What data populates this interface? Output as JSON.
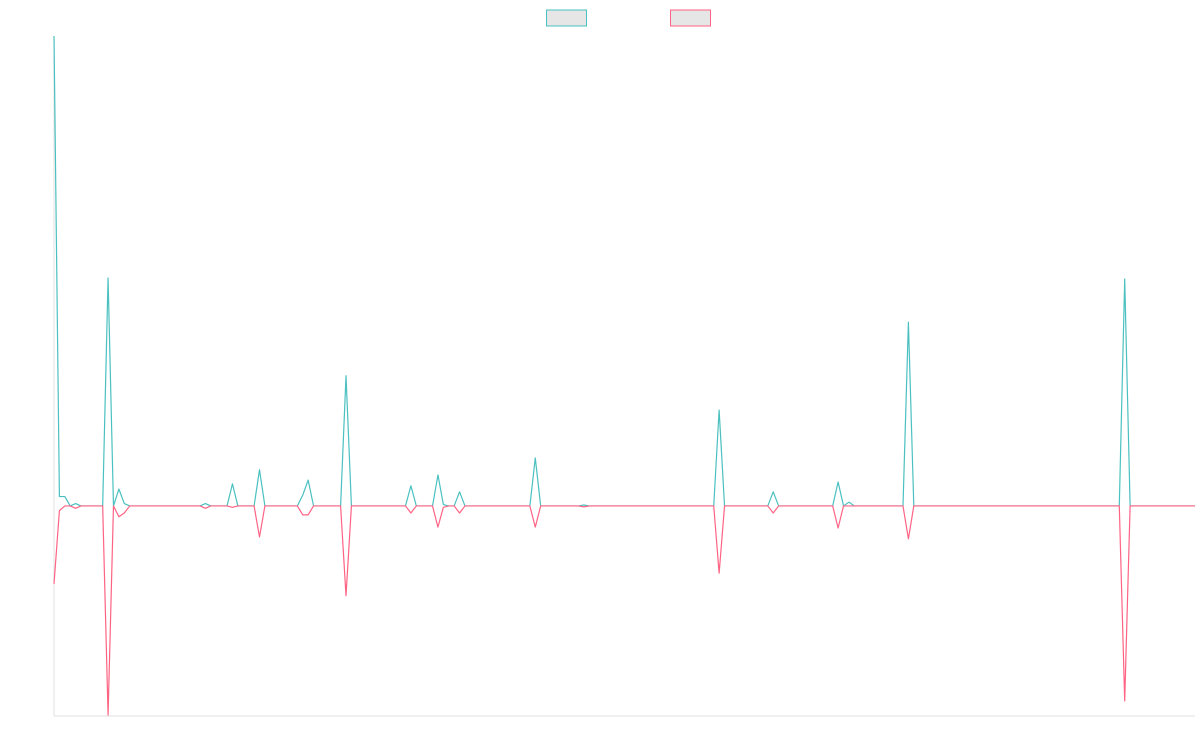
{
  "chart_data": {
    "type": "line",
    "categories": [
      null,
      null,
      null,
      null,
      null,
      null,
      null,
      null,
      null,
      null,
      null,
      null,
      null,
      null,
      null,
      null,
      null,
      null,
      null,
      null,
      null,
      null,
      null,
      null,
      null,
      null,
      null,
      null,
      null,
      null,
      null,
      null,
      null,
      null,
      null,
      null,
      null,
      null,
      null,
      null,
      null,
      null,
      null,
      null,
      null,
      null,
      null,
      null,
      null,
      null,
      null,
      null,
      null,
      null,
      null,
      null,
      null,
      null,
      null,
      null,
      null,
      null,
      null,
      null,
      null,
      null,
      null,
      null,
      null,
      null,
      null,
      null,
      null,
      null,
      null,
      null,
      null,
      null,
      null,
      null,
      null,
      null,
      null,
      null,
      null,
      null,
      null,
      null,
      null,
      null,
      null,
      null,
      null,
      null,
      null,
      null,
      null,
      null,
      null,
      null,
      null,
      null,
      null,
      null,
      null,
      null,
      null,
      null,
      null,
      null,
      null,
      null,
      null,
      null,
      null,
      null,
      null,
      null,
      null,
      null,
      null,
      null,
      null,
      null,
      null,
      null,
      null,
      null,
      null,
      null,
      null,
      null,
      null,
      null,
      null,
      null,
      null,
      null,
      null,
      null,
      null,
      null,
      null,
      null,
      null,
      null,
      null,
      null,
      null,
      null,
      null,
      null,
      null,
      null,
      null,
      null,
      null,
      null,
      null,
      null,
      null,
      null,
      null,
      null,
      null,
      null,
      null,
      null,
      null,
      null,
      null,
      null,
      null,
      null,
      null,
      null,
      null,
      null,
      null,
      null,
      null,
      null,
      null,
      null,
      null,
      null,
      null,
      null,
      null,
      null,
      null,
      null,
      null,
      null,
      null,
      null,
      null,
      null,
      null,
      null,
      null,
      null,
      null,
      null,
      null,
      null,
      null,
      null,
      null,
      null,
      null,
      null
    ],
    "series": [
      {
        "color": "#4bc0c0",
        "values": [
          100,
          2,
          2,
          0,
          0.5,
          0,
          0,
          0,
          0,
          0,
          48.5,
          0,
          3.6,
          0.5,
          0,
          0,
          0,
          0,
          0,
          0,
          0,
          0,
          0,
          0,
          0,
          0,
          0,
          0,
          0.5,
          0,
          0,
          0,
          0,
          4.7,
          0,
          0,
          0,
          0,
          7.7,
          0,
          0,
          0,
          0,
          0,
          0,
          0,
          2.3,
          5.5,
          0,
          0,
          0,
          0,
          0,
          0,
          27.7,
          0,
          0,
          0,
          0,
          0,
          0,
          0,
          0,
          0,
          0,
          0,
          4.3,
          0,
          0,
          0,
          0,
          6.6,
          0.3,
          0,
          0,
          3,
          0,
          0,
          0,
          0,
          0,
          0,
          0,
          0,
          0,
          0,
          0,
          0,
          0,
          10.2,
          0,
          0,
          0,
          0,
          0,
          0,
          0,
          0,
          0.2,
          0,
          0,
          0,
          0,
          0,
          0,
          0,
          0,
          0,
          0,
          0,
          0,
          0,
          0,
          0,
          0,
          0,
          0,
          0,
          0,
          0,
          0,
          0,
          0,
          20.4,
          0,
          0,
          0,
          0,
          0,
          0,
          0,
          0,
          0,
          3,
          0,
          0,
          0,
          0,
          0,
          0,
          0,
          0,
          0,
          0,
          0,
          5.1,
          0,
          0.8,
          0,
          0,
          0,
          0,
          0,
          0,
          0,
          0,
          0,
          0,
          39.1,
          0,
          0,
          0,
          0,
          0,
          0,
          0,
          0,
          0,
          0,
          0,
          0,
          0,
          0,
          0,
          0,
          0,
          0,
          0,
          0,
          0,
          0,
          0,
          0,
          0,
          0,
          0,
          0,
          0,
          0,
          0,
          0,
          0,
          0,
          0,
          0,
          0,
          0,
          0,
          48.3,
          0,
          0,
          0,
          0,
          0,
          0,
          0,
          0,
          0,
          0,
          0,
          0,
          0
        ]
      },
      {
        "color": "#ff6384",
        "values": [
          -16.6,
          -1,
          0,
          0,
          -0.5,
          0,
          0,
          0,
          0,
          0,
          -44.5,
          0,
          -2.3,
          -1.5,
          0,
          0,
          0,
          0,
          0,
          0,
          0,
          0,
          0,
          0,
          0,
          0,
          0,
          0,
          -0.5,
          0,
          0,
          0,
          0,
          -0.3,
          0,
          0,
          0,
          0,
          -6.6,
          0,
          0,
          0,
          0,
          0,
          0,
          0,
          -1.9,
          -1.9,
          0,
          0,
          0,
          0,
          0,
          0,
          -19.1,
          0,
          0,
          0,
          0,
          0,
          0,
          0,
          0,
          0,
          0,
          0,
          -1.5,
          0,
          0,
          0,
          0,
          -4.5,
          -0.3,
          0,
          0,
          -1.5,
          0,
          0,
          0,
          0,
          0,
          0,
          0,
          0,
          0,
          0,
          0,
          0,
          0,
          -4.5,
          0,
          0,
          0,
          0,
          0,
          0,
          0,
          0,
          -0.2,
          0,
          0,
          0,
          0,
          0,
          0,
          0,
          0,
          0,
          0,
          0,
          0,
          0,
          0,
          0,
          0,
          0,
          0,
          0,
          0,
          0,
          0,
          0,
          0,
          -14.3,
          0,
          0,
          0,
          0,
          0,
          0,
          0,
          0,
          0,
          -1.5,
          0,
          0,
          0,
          0,
          0,
          0,
          0,
          0,
          0,
          0,
          0,
          -4.7,
          0,
          0,
          0,
          0,
          0,
          0,
          0,
          0,
          0,
          0,
          0,
          0,
          -7,
          0,
          0,
          0,
          0,
          0,
          0,
          0,
          0,
          0,
          0,
          0,
          0,
          0,
          0,
          0,
          0,
          0,
          0,
          0,
          0,
          0,
          0,
          0,
          0,
          0,
          0,
          0,
          0,
          0,
          0,
          0,
          0,
          0,
          0,
          0,
          0,
          0,
          0,
          0,
          -41.5,
          0,
          0,
          0,
          0,
          0,
          0,
          0,
          0,
          0,
          0,
          0,
          0,
          0
        ]
      }
    ],
    "ylim": [
      -44.7,
      100
    ]
  }
}
